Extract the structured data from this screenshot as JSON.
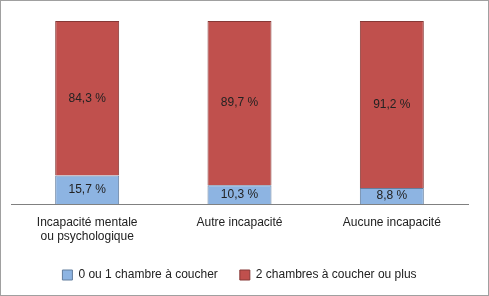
{
  "chart_data": {
    "type": "bar",
    "stacked": true,
    "categories": [
      "Incapacité mentale ou psychologique",
      "Autre incapacité",
      "Aucune incapacité"
    ],
    "series": [
      {
        "name": "0 ou 1 chambre à coucher",
        "color": "#8db4e2",
        "values": [
          15.7,
          10.3,
          8.8
        ],
        "value_labels": [
          "15,7 %",
          "10,3 %",
          "8,8 %"
        ]
      },
      {
        "name": "2 chambres à coucher ou plus",
        "color": "#c0504d",
        "values": [
          84.3,
          89.7,
          91.2
        ],
        "value_labels": [
          "84,3 %",
          "89,7 %",
          "91,2 %"
        ]
      }
    ],
    "ylim": [
      0,
      100
    ],
    "grid": false,
    "legend": "bottom",
    "data_labels": true,
    "tick_labels": "x"
  }
}
